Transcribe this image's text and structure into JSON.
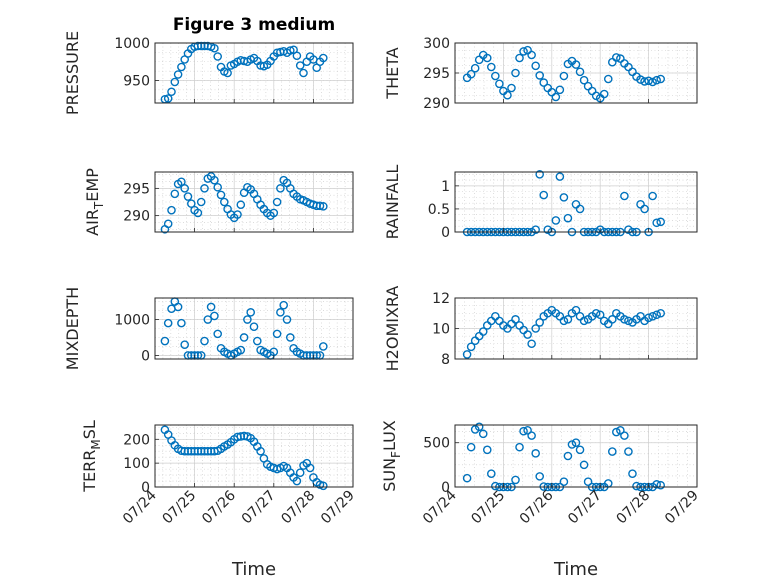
{
  "figure": {
    "title": "Figure 3 medium",
    "marker_color": "#0072bd"
  },
  "chart_data": [
    {
      "type": "scatter",
      "ylabel": "PRESSURE",
      "title": "Figure 3 medium",
      "xlabel": "",
      "xlim": [
        "07/24",
        "07/29"
      ],
      "ylim": [
        920,
        1000
      ],
      "yticks": [
        "950",
        "1000"
      ],
      "grid": true,
      "x": [
        "07/24 06:00",
        "07/24 08:00",
        "07/24 10:00",
        "07/24 12:00",
        "07/24 14:00",
        "07/24 16:00",
        "07/24 18:00",
        "07/24 20:00",
        "07/24 22:00",
        "07/25 00:00",
        "07/25 02:00",
        "07/25 04:00",
        "07/25 06:00",
        "07/25 08:00",
        "07/25 10:00",
        "07/25 12:00",
        "07/25 14:00",
        "07/25 16:00",
        "07/25 18:00",
        "07/25 20:00",
        "07/25 22:00",
        "07/26 00:00",
        "07/26 02:00",
        "07/26 04:00",
        "07/26 06:00",
        "07/26 08:00",
        "07/26 10:00",
        "07/26 12:00",
        "07/26 14:00",
        "07/26 16:00",
        "07/26 18:00",
        "07/26 20:00",
        "07/26 22:00",
        "07/27 00:00",
        "07/27 02:00",
        "07/27 04:00",
        "07/27 06:00",
        "07/27 08:00",
        "07/27 10:00",
        "07/27 12:00",
        "07/27 14:00",
        "07/27 16:00",
        "07/27 18:00",
        "07/27 20:00",
        "07/27 22:00",
        "07/28 00:00",
        "07/28 02:00",
        "07/28 04:00",
        "07/28 06:00"
      ],
      "y": [
        925,
        926,
        935,
        948,
        958,
        968,
        978,
        986,
        992,
        995,
        996,
        996,
        996,
        996,
        995,
        993,
        982,
        968,
        962,
        960,
        970,
        972,
        975,
        977,
        976,
        975,
        978,
        980,
        976,
        970,
        969,
        971,
        976,
        982,
        987,
        988,
        989,
        987,
        990,
        991,
        983,
        970,
        960,
        975,
        982,
        978,
        967,
        975,
        980
      ]
    },
    {
      "type": "scatter",
      "ylabel": "THETA",
      "xlabel": "",
      "xlim": [
        "07/24",
        "07/29"
      ],
      "ylim": [
        290,
        300
      ],
      "yticks": [
        "290",
        "295",
        "300"
      ],
      "grid": true,
      "x": [
        "07/24 06:00",
        "07/24 08:00",
        "07/24 10:00",
        "07/24 12:00",
        "07/24 14:00",
        "07/24 16:00",
        "07/24 18:00",
        "07/24 20:00",
        "07/24 22:00",
        "07/25 00:00",
        "07/25 02:00",
        "07/25 04:00",
        "07/25 06:00",
        "07/25 08:00",
        "07/25 10:00",
        "07/25 12:00",
        "07/25 14:00",
        "07/25 16:00",
        "07/25 18:00",
        "07/25 20:00",
        "07/25 22:00",
        "07/26 00:00",
        "07/26 02:00",
        "07/26 04:00",
        "07/26 06:00",
        "07/26 08:00",
        "07/26 10:00",
        "07/26 12:00",
        "07/26 14:00",
        "07/26 16:00",
        "07/26 18:00",
        "07/26 20:00",
        "07/26 22:00",
        "07/27 00:00",
        "07/27 02:00",
        "07/27 04:00",
        "07/27 06:00",
        "07/27 08:00",
        "07/27 10:00",
        "07/27 12:00",
        "07/27 14:00",
        "07/27 16:00",
        "07/27 18:00",
        "07/27 20:00",
        "07/27 22:00",
        "07/28 00:00",
        "07/28 02:00",
        "07/28 04:00",
        "07/28 06:00"
      ],
      "y": [
        294.2,
        294.8,
        295.8,
        297.2,
        298.0,
        297.5,
        296.0,
        294.5,
        293.2,
        292.0,
        291.3,
        292.5,
        295.0,
        297.5,
        298.6,
        298.8,
        298.0,
        296.2,
        294.6,
        293.4,
        292.5,
        291.8,
        291.0,
        292.2,
        294.5,
        296.5,
        297.0,
        296.4,
        295.2,
        293.8,
        292.8,
        292.0,
        291.2,
        290.8,
        291.5,
        294.0,
        296.8,
        297.6,
        297.4,
        296.6,
        296.0,
        295.2,
        294.4,
        293.9,
        293.6,
        293.7,
        293.5,
        293.8,
        294.0
      ]
    },
    {
      "type": "scatter",
      "ylabel": "AIR_TEMP",
      "xlabel": "",
      "xlim": [
        "07/24",
        "07/29"
      ],
      "ylim": [
        287,
        298
      ],
      "yticks": [
        "290",
        "295"
      ],
      "grid": true,
      "x": [
        "07/24 06:00",
        "07/24 08:00",
        "07/24 10:00",
        "07/24 12:00",
        "07/24 14:00",
        "07/24 16:00",
        "07/24 18:00",
        "07/24 20:00",
        "07/24 22:00",
        "07/25 00:00",
        "07/25 02:00",
        "07/25 04:00",
        "07/25 06:00",
        "07/25 08:00",
        "07/25 10:00",
        "07/25 12:00",
        "07/25 14:00",
        "07/25 16:00",
        "07/25 18:00",
        "07/25 20:00",
        "07/25 22:00",
        "07/26 00:00",
        "07/26 02:00",
        "07/26 04:00",
        "07/26 06:00",
        "07/26 08:00",
        "07/26 10:00",
        "07/26 12:00",
        "07/26 14:00",
        "07/26 16:00",
        "07/26 18:00",
        "07/26 20:00",
        "07/26 22:00",
        "07/27 00:00",
        "07/27 02:00",
        "07/27 04:00",
        "07/27 06:00",
        "07/27 08:00",
        "07/27 10:00",
        "07/27 12:00",
        "07/27 14:00",
        "07/27 16:00",
        "07/27 18:00",
        "07/27 20:00",
        "07/27 22:00",
        "07/28 00:00",
        "07/28 02:00",
        "07/28 04:00",
        "07/28 06:00"
      ],
      "y": [
        287.5,
        288.5,
        291.0,
        294.0,
        295.8,
        296.2,
        295.0,
        293.5,
        292.2,
        291.0,
        290.5,
        292.5,
        295.0,
        296.8,
        297.2,
        296.5,
        295.2,
        293.8,
        292.5,
        291.2,
        290.2,
        289.6,
        290.2,
        292.0,
        294.2,
        295.2,
        294.8,
        294.0,
        293.0,
        292.0,
        291.2,
        290.5,
        290.0,
        290.5,
        292.5,
        295.0,
        296.5,
        296.0,
        295.0,
        294.0,
        293.5,
        293.0,
        292.8,
        292.5,
        292.2,
        292.0,
        291.8,
        291.8,
        291.7
      ]
    },
    {
      "type": "scatter",
      "ylabel": "RAINFALL",
      "xlabel": "",
      "xlim": [
        "07/24",
        "07/29"
      ],
      "ylim": [
        0,
        1.3
      ],
      "yticks": [
        "0",
        "0.5",
        "1"
      ],
      "grid": true,
      "x": [
        "07/24 06:00",
        "07/24 08:00",
        "07/24 10:00",
        "07/24 12:00",
        "07/24 14:00",
        "07/24 16:00",
        "07/24 18:00",
        "07/24 20:00",
        "07/24 22:00",
        "07/25 00:00",
        "07/25 02:00",
        "07/25 04:00",
        "07/25 06:00",
        "07/25 08:00",
        "07/25 10:00",
        "07/25 12:00",
        "07/25 14:00",
        "07/25 16:00",
        "07/25 18:00",
        "07/25 20:00",
        "07/25 22:00",
        "07/26 00:00",
        "07/26 02:00",
        "07/26 04:00",
        "07/26 06:00",
        "07/26 08:00",
        "07/26 10:00",
        "07/26 12:00",
        "07/26 14:00",
        "07/26 16:00",
        "07/26 18:00",
        "07/26 20:00",
        "07/26 22:00",
        "07/27 00:00",
        "07/27 02:00",
        "07/27 04:00",
        "07/27 06:00",
        "07/27 08:00",
        "07/27 10:00",
        "07/27 12:00",
        "07/27 14:00",
        "07/27 16:00",
        "07/27 18:00",
        "07/27 20:00",
        "07/27 22:00",
        "07/28 00:00",
        "07/28 02:00",
        "07/28 04:00",
        "07/28 06:00"
      ],
      "y": [
        0,
        0,
        0,
        0,
        0,
        0,
        0,
        0,
        0,
        0,
        0,
        0,
        0,
        0,
        0,
        0,
        0,
        0.05,
        1.25,
        0.8,
        0.05,
        0,
        0.25,
        1.2,
        0.75,
        0.3,
        0,
        0.6,
        0.5,
        0,
        0,
        0,
        0,
        0.05,
        0,
        0,
        0,
        0,
        0,
        0.78,
        0.05,
        0,
        0,
        0.6,
        0.5,
        0,
        0.78,
        0.2,
        0.22
      ]
    },
    {
      "type": "scatter",
      "ylabel": "MIXDEPTH",
      "xlabel": "",
      "xlim": [
        "07/24",
        "07/29"
      ],
      "ylim": [
        -100,
        1600
      ],
      "yticks": [
        "0",
        "1000"
      ],
      "grid": true,
      "x": [
        "07/24 06:00",
        "07/24 08:00",
        "07/24 10:00",
        "07/24 12:00",
        "07/24 14:00",
        "07/24 16:00",
        "07/24 18:00",
        "07/24 20:00",
        "07/24 22:00",
        "07/25 00:00",
        "07/25 02:00",
        "07/25 04:00",
        "07/25 06:00",
        "07/25 08:00",
        "07/25 10:00",
        "07/25 12:00",
        "07/25 14:00",
        "07/25 16:00",
        "07/25 18:00",
        "07/25 20:00",
        "07/25 22:00",
        "07/26 00:00",
        "07/26 02:00",
        "07/26 04:00",
        "07/26 06:00",
        "07/26 08:00",
        "07/26 10:00",
        "07/26 12:00",
        "07/26 14:00",
        "07/26 16:00",
        "07/26 18:00",
        "07/26 20:00",
        "07/26 22:00",
        "07/27 00:00",
        "07/27 02:00",
        "07/27 04:00",
        "07/27 06:00",
        "07/27 08:00",
        "07/27 10:00",
        "07/27 12:00",
        "07/27 14:00",
        "07/27 16:00",
        "07/27 18:00",
        "07/27 20:00",
        "07/27 22:00",
        "07/28 00:00",
        "07/28 02:00",
        "07/28 04:00",
        "07/28 06:00"
      ],
      "y": [
        400,
        900,
        1300,
        1500,
        1350,
        900,
        300,
        0,
        0,
        0,
        0,
        0,
        400,
        1000,
        1350,
        1100,
        600,
        200,
        100,
        50,
        0,
        50,
        100,
        150,
        500,
        1000,
        1200,
        800,
        400,
        150,
        100,
        50,
        0,
        100,
        600,
        1200,
        1400,
        1000,
        500,
        200,
        100,
        50,
        0,
        0,
        0,
        0,
        0,
        0,
        250
      ]
    },
    {
      "type": "scatter",
      "ylabel": "H2OMIXRA",
      "xlabel": "",
      "xlim": [
        "07/24",
        "07/29"
      ],
      "ylim": [
        8,
        12
      ],
      "yticks": [
        "8",
        "10",
        "12"
      ],
      "grid": true,
      "x": [
        "07/24 06:00",
        "07/24 08:00",
        "07/24 10:00",
        "07/24 12:00",
        "07/24 14:00",
        "07/24 16:00",
        "07/24 18:00",
        "07/24 20:00",
        "07/24 22:00",
        "07/25 00:00",
        "07/25 02:00",
        "07/25 04:00",
        "07/25 06:00",
        "07/25 08:00",
        "07/25 10:00",
        "07/25 12:00",
        "07/25 14:00",
        "07/25 16:00",
        "07/25 18:00",
        "07/25 20:00",
        "07/25 22:00",
        "07/26 00:00",
        "07/26 02:00",
        "07/26 04:00",
        "07/26 06:00",
        "07/26 08:00",
        "07/26 10:00",
        "07/26 12:00",
        "07/26 14:00",
        "07/26 16:00",
        "07/26 18:00",
        "07/26 20:00",
        "07/26 22:00",
        "07/27 00:00",
        "07/27 02:00",
        "07/27 04:00",
        "07/27 06:00",
        "07/27 08:00",
        "07/27 10:00",
        "07/27 12:00",
        "07/27 14:00",
        "07/27 16:00",
        "07/27 18:00",
        "07/27 20:00",
        "07/27 22:00",
        "07/28 00:00",
        "07/28 02:00",
        "07/28 04:00",
        "07/28 06:00"
      ],
      "y": [
        8.3,
        8.8,
        9.2,
        9.5,
        9.8,
        10.2,
        10.5,
        10.8,
        10.5,
        10.2,
        10.0,
        10.3,
        10.6,
        10.2,
        9.9,
        9.6,
        9.0,
        10.0,
        10.4,
        10.8,
        11.0,
        11.2,
        11.0,
        10.8,
        10.5,
        10.6,
        11.0,
        11.2,
        10.8,
        10.5,
        10.6,
        10.8,
        11.0,
        10.9,
        10.5,
        10.3,
        10.6,
        11.0,
        10.8,
        10.6,
        10.5,
        10.4,
        10.6,
        10.8,
        10.5,
        10.7,
        10.8,
        10.9,
        11.0
      ]
    },
    {
      "type": "scatter",
      "ylabel": "TERR_MSL",
      "xlabel": "Time",
      "xlim": [
        "07/24",
        "07/29"
      ],
      "ylim": [
        0,
        260
      ],
      "yticks": [
        "0",
        "100",
        "200"
      ],
      "xticks": [
        "07/24",
        "07/25",
        "07/26",
        "07/27",
        "07/28",
        "07/29"
      ],
      "grid": true,
      "x": [
        "07/24 06:00",
        "07/24 08:00",
        "07/24 10:00",
        "07/24 12:00",
        "07/24 14:00",
        "07/24 16:00",
        "07/24 18:00",
        "07/24 20:00",
        "07/24 22:00",
        "07/25 00:00",
        "07/25 02:00",
        "07/25 04:00",
        "07/25 06:00",
        "07/25 08:00",
        "07/25 10:00",
        "07/25 12:00",
        "07/25 14:00",
        "07/25 16:00",
        "07/25 18:00",
        "07/25 20:00",
        "07/25 22:00",
        "07/26 00:00",
        "07/26 02:00",
        "07/26 04:00",
        "07/26 06:00",
        "07/26 08:00",
        "07/26 10:00",
        "07/26 12:00",
        "07/26 14:00",
        "07/26 16:00",
        "07/26 18:00",
        "07/26 20:00",
        "07/26 22:00",
        "07/27 00:00",
        "07/27 02:00",
        "07/27 04:00",
        "07/27 06:00",
        "07/27 08:00",
        "07/27 10:00",
        "07/27 12:00",
        "07/27 14:00",
        "07/27 16:00",
        "07/27 18:00",
        "07/27 20:00",
        "07/27 22:00",
        "07/28 00:00",
        "07/28 02:00",
        "07/28 04:00",
        "07/28 06:00"
      ],
      "y": [
        240,
        220,
        195,
        175,
        160,
        152,
        150,
        150,
        150,
        150,
        150,
        150,
        150,
        150,
        150,
        150,
        152,
        160,
        170,
        178,
        188,
        200,
        210,
        212,
        214,
        212,
        205,
        190,
        170,
        150,
        120,
        95,
        85,
        80,
        75,
        80,
        88,
        80,
        60,
        40,
        25,
        60,
        90,
        100,
        80,
        40,
        20,
        10,
        5
      ]
    },
    {
      "type": "scatter",
      "ylabel": "SUN_FLUX",
      "xlabel": "Time",
      "xlim": [
        "07/24",
        "07/29"
      ],
      "ylim": [
        0,
        700
      ],
      "yticks": [
        "0",
        "500"
      ],
      "xticks": [
        "07/24",
        "07/25",
        "07/26",
        "07/27",
        "07/28",
        "07/29"
      ],
      "grid": true,
      "x": [
        "07/24 06:00",
        "07/24 08:00",
        "07/24 10:00",
        "07/24 12:00",
        "07/24 14:00",
        "07/24 16:00",
        "07/24 18:00",
        "07/24 20:00",
        "07/24 22:00",
        "07/25 00:00",
        "07/25 02:00",
        "07/25 04:00",
        "07/25 06:00",
        "07/25 08:00",
        "07/25 10:00",
        "07/25 12:00",
        "07/25 14:00",
        "07/25 16:00",
        "07/25 18:00",
        "07/25 20:00",
        "07/25 22:00",
        "07/26 00:00",
        "07/26 02:00",
        "07/26 04:00",
        "07/26 06:00",
        "07/26 08:00",
        "07/26 10:00",
        "07/26 12:00",
        "07/26 14:00",
        "07/26 16:00",
        "07/26 18:00",
        "07/26 20:00",
        "07/26 22:00",
        "07/27 00:00",
        "07/27 02:00",
        "07/27 04:00",
        "07/27 06:00",
        "07/27 08:00",
        "07/27 10:00",
        "07/27 12:00",
        "07/27 14:00",
        "07/27 16:00",
        "07/27 18:00",
        "07/27 20:00",
        "07/27 22:00",
        "07/28 00:00",
        "07/28 02:00",
        "07/28 04:00",
        "07/28 06:00"
      ],
      "y": [
        100,
        450,
        650,
        680,
        600,
        420,
        150,
        10,
        0,
        0,
        0,
        0,
        80,
        450,
        630,
        640,
        580,
        380,
        120,
        5,
        0,
        0,
        0,
        0,
        60,
        350,
        480,
        500,
        420,
        250,
        60,
        0,
        0,
        0,
        0,
        40,
        400,
        620,
        640,
        580,
        400,
        150,
        10,
        0,
        0,
        0,
        0,
        30,
        20
      ]
    }
  ]
}
